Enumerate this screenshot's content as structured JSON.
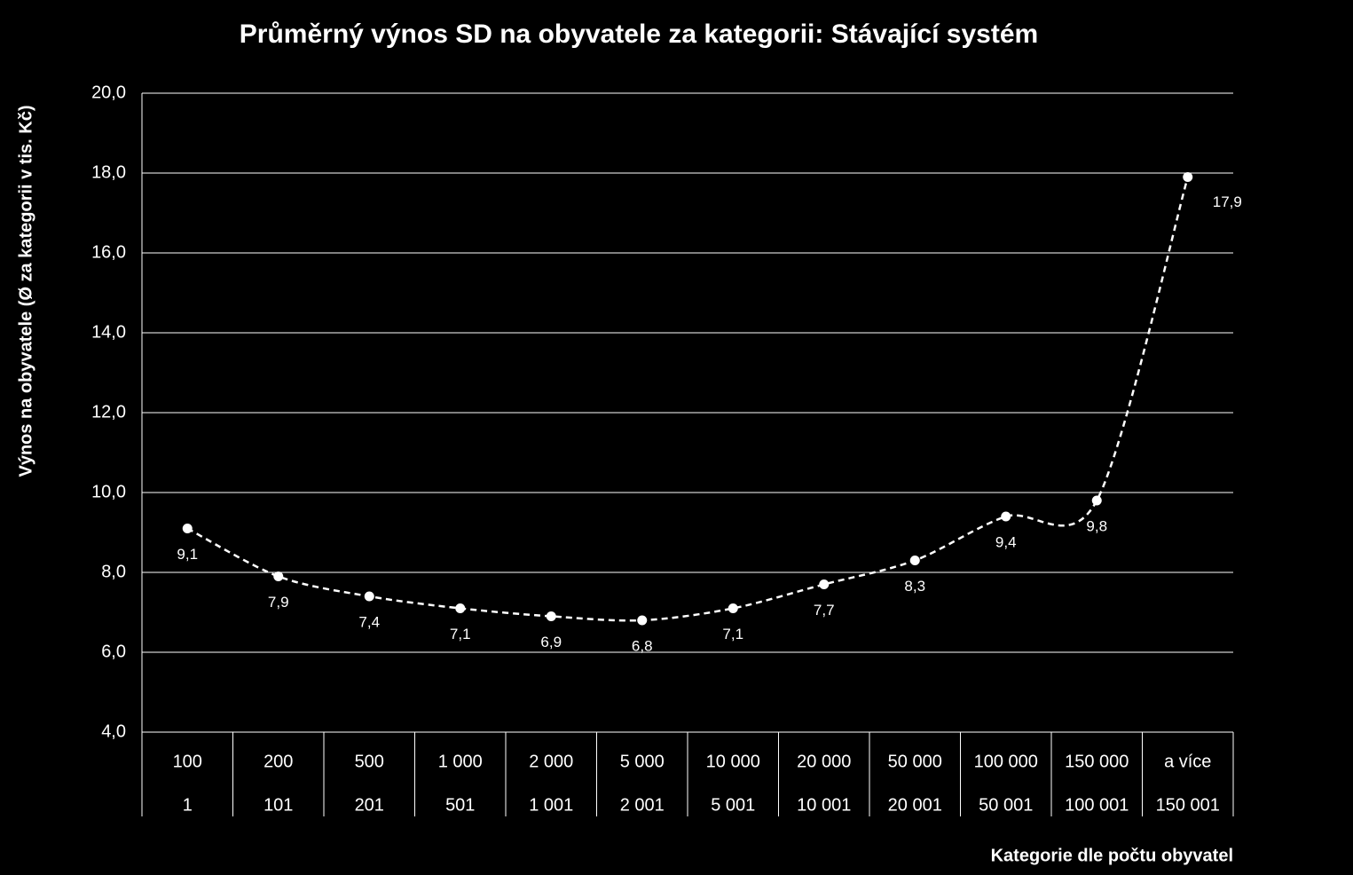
{
  "chart_data": {
    "type": "line",
    "title": "Průměrný výnos SD na obyvatele za kategorii: Stávající systém",
    "y_axis_label": "Výnos na obyvatele (Ø za kategorii v tis. Kč)",
    "x_axis_label": "Kategorie dle počtu obyvatel",
    "categories": [
      "100",
      "200",
      "500",
      "1 000",
      "2 000",
      "5 000",
      "10 000",
      "20 000",
      "50 000",
      "100 000",
      "150 000",
      "a více"
    ],
    "categories_from": [
      "1",
      "101",
      "201",
      "501",
      "1 001",
      "2 001",
      "5 001",
      "10 001",
      "20 001",
      "50 001",
      "100 001",
      "150 001"
    ],
    "series": [
      {
        "color": "#ffffff",
        "values": [
          9.1,
          7.9,
          7.4,
          7.1,
          6.9,
          6.8,
          7.1,
          7.7,
          8.3,
          9.4,
          9.8,
          17.9
        ],
        "value_labels": [
          "9,1",
          "7,9",
          "7,4",
          "7,1",
          "6,9",
          "6,8",
          "7,1",
          "7,7",
          "8,3",
          "9,4",
          "9,8",
          "17,9"
        ]
      }
    ],
    "ylim": [
      4,
      20
    ],
    "yticks": [
      {
        "value": 4,
        "label": "4,0"
      },
      {
        "value": 6,
        "label": "6,0"
      },
      {
        "value": 8,
        "label": "8,0"
      },
      {
        "value": 10,
        "label": "10,0"
      },
      {
        "value": 12,
        "label": "12,0"
      },
      {
        "value": 14,
        "label": "14,0"
      },
      {
        "value": 16,
        "label": "16,0"
      },
      {
        "value": 18,
        "label": "18,0"
      },
      {
        "value": 20,
        "label": "20,0"
      }
    ],
    "grid": true
  }
}
